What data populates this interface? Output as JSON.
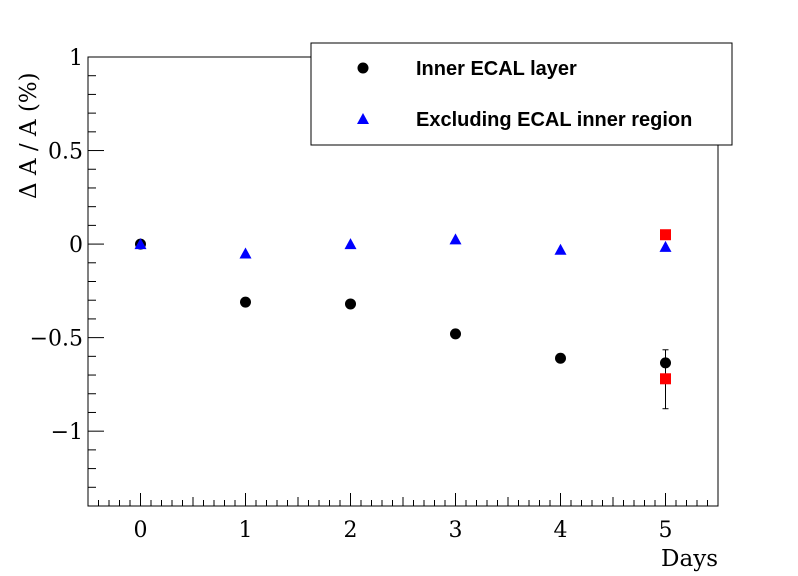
{
  "chart_data": {
    "type": "scatter",
    "xlabel": "Days",
    "ylabel": "Δ A / A  (%)",
    "xlim": [
      -0.5,
      5.5
    ],
    "ylim": [
      -1.4,
      1.0
    ],
    "x_ticks": [
      0,
      1,
      2,
      3,
      4,
      5
    ],
    "x_tick_labels": [
      "0",
      "1",
      "2",
      "3",
      "4",
      "5"
    ],
    "y_ticks": [
      -1,
      -0.5,
      0,
      0.5,
      1
    ],
    "y_tick_labels": [
      "−1",
      "−0.5",
      "0",
      "0.5",
      "1"
    ],
    "grid": false,
    "legend_position": "top-right",
    "series": [
      {
        "name": "Inner ECAL layer",
        "marker": "circle",
        "color": "#000000",
        "x": [
          0,
          1,
          2,
          3,
          4,
          5
        ],
        "y": [
          0.0,
          -0.31,
          -0.32,
          -0.48,
          -0.61,
          -0.635
        ],
        "yerr_low": [
          0,
          0,
          0,
          0,
          0,
          0.245
        ],
        "yerr_high": [
          0,
          0,
          0,
          0,
          0,
          0.07
        ]
      },
      {
        "name": "Excluding ECAL inner region",
        "marker": "triangle",
        "color": "#0000ff",
        "x": [
          0,
          1,
          2,
          3,
          4,
          5
        ],
        "y": [
          0.0,
          -0.05,
          0.0,
          0.025,
          -0.03,
          -0.015
        ]
      },
      {
        "marker": "square",
        "color": "#ff0000",
        "x": [
          5,
          5
        ],
        "y": [
          0.05,
          -0.72
        ]
      }
    ]
  }
}
